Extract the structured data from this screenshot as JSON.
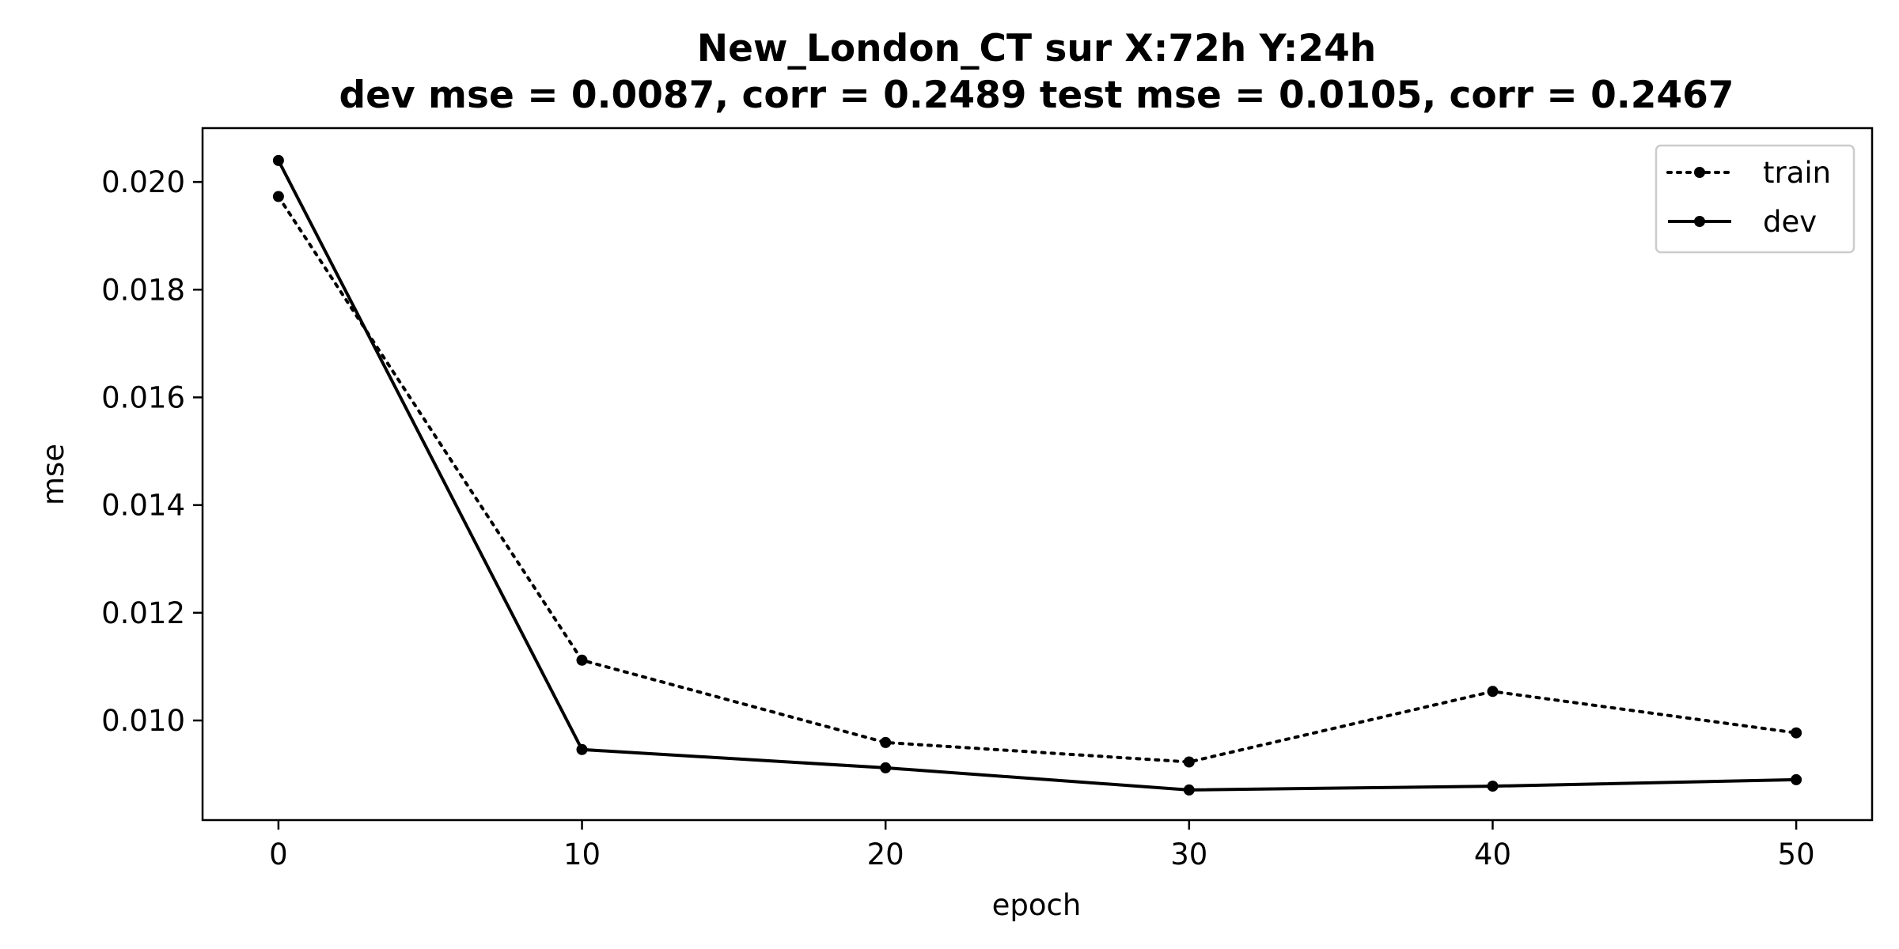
{
  "chart_data": {
    "type": "line",
    "title": "New_London_CT   sur   X:72h   Y:24h",
    "subtitle": "dev mse = 0.0087, corr = 0.2489   test mse = 0.0105, corr = 0.2467",
    "xlabel": "epoch",
    "ylabel": "mse",
    "x": [
      0,
      10,
      20,
      30,
      40,
      50
    ],
    "xlim": [
      -2.5,
      52.5
    ],
    "ylim": [
      0.00815,
      0.021
    ],
    "xticks": [
      0,
      10,
      20,
      30,
      40,
      50
    ],
    "yticks": [
      0.01,
      0.012,
      0.014,
      0.016,
      0.018,
      0.02
    ],
    "ytick_labels": [
      "0.010",
      "0.012",
      "0.014",
      "0.016",
      "0.018",
      "0.020"
    ],
    "grid": false,
    "legend_position": "top-right",
    "series": [
      {
        "name": "train",
        "style": "dotted",
        "color": "#000000",
        "values": [
          0.01973,
          0.01112,
          0.00959,
          0.00923,
          0.01054,
          0.00977
        ]
      },
      {
        "name": "dev",
        "style": "solid",
        "color": "#000000",
        "values": [
          0.0204,
          0.00946,
          0.00912,
          0.00871,
          0.00878,
          0.0089
        ]
      }
    ]
  }
}
